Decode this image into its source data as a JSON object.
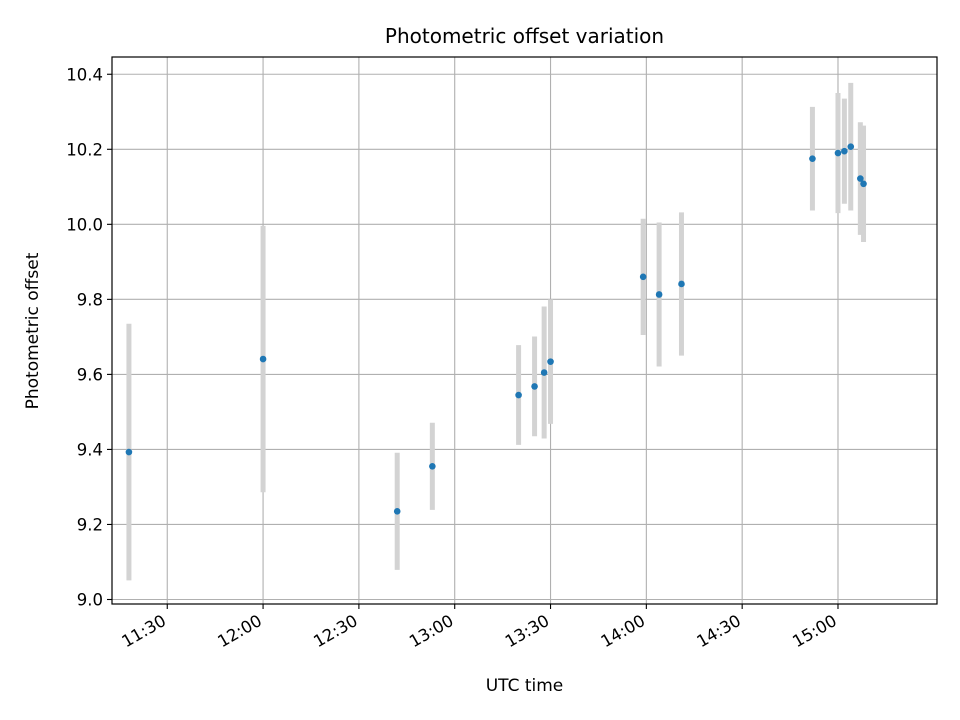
{
  "chart_data": {
    "type": "scatter",
    "title": "Photometric offset variation",
    "xlabel": "UTC time",
    "ylabel": "Photometric offset",
    "x_ticks": [
      "11:30",
      "12:00",
      "12:30",
      "13:00",
      "13:30",
      "14:00",
      "14:30",
      "15:00"
    ],
    "x_tick_minutes": [
      690,
      720,
      750,
      780,
      810,
      840,
      870,
      900
    ],
    "y_ticks": [
      "9.0",
      "9.2",
      "9.4",
      "9.6",
      "9.8",
      "10.0",
      "10.2",
      "10.4"
    ],
    "xlim_minutes": [
      672.7,
      931.0
    ],
    "ylim": [
      8.988,
      10.446
    ],
    "grid": true,
    "point_color": "#1f77b4",
    "errorbar_color": "#d3d3d3",
    "series": [
      {
        "points": [
          {
            "t": "11:18",
            "y": 9.393,
            "err": 0.342
          },
          {
            "t": "12:00",
            "y": 9.641,
            "err": 0.355
          },
          {
            "t": "12:42",
            "y": 9.235,
            "err": 0.156
          },
          {
            "t": "12:53",
            "y": 9.355,
            "err": 0.116
          },
          {
            "t": "13:20",
            "y": 9.545,
            "err": 0.133
          },
          {
            "t": "13:25",
            "y": 9.568,
            "err": 0.133
          },
          {
            "t": "13:28",
            "y": 9.605,
            "err": 0.176
          },
          {
            "t": "13:30",
            "y": 9.634,
            "err": 0.166
          },
          {
            "t": "13:59",
            "y": 9.86,
            "err": 0.155
          },
          {
            "t": "14:04",
            "y": 9.813,
            "err": 0.192
          },
          {
            "t": "14:11",
            "y": 9.841,
            "err": 0.191
          },
          {
            "t": "14:52",
            "y": 10.175,
            "err": 0.138
          },
          {
            "t": "15:00",
            "y": 10.19,
            "err": 0.16
          },
          {
            "t": "15:02",
            "y": 10.195,
            "err": 0.14
          },
          {
            "t": "15:04",
            "y": 10.207,
            "err": 0.17
          },
          {
            "t": "15:07",
            "y": 10.122,
            "err": 0.15
          },
          {
            "t": "15:08",
            "y": 10.108,
            "err": 0.155
          }
        ]
      }
    ]
  }
}
